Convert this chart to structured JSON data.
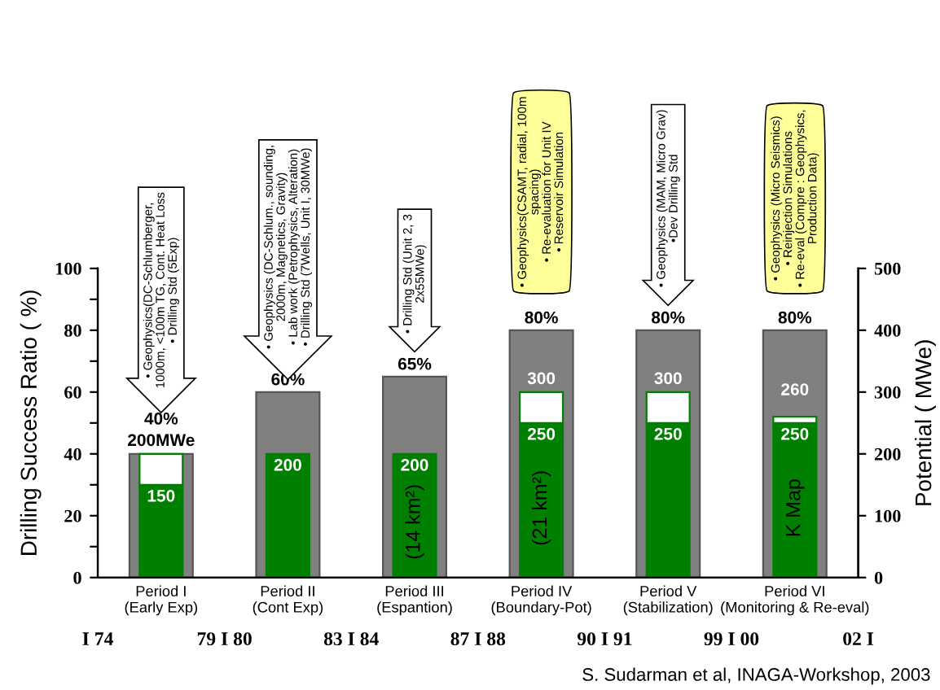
{
  "chart_data": {
    "type": "bar",
    "categories": [
      "Period I\n(Early Exp)",
      "Period II\n(Cont Exp)",
      "Period III\n(Espantion)",
      "Period IV\n(Boundary-Pot)",
      "Period V\n(Stabilization)",
      "Period VI\n(Monitoring & Re-eval)"
    ],
    "series": [
      {
        "color": "#808080",
        "values": [
          40,
          60,
          65,
          80,
          80,
          80
        ],
        "value_labels": [
          "40%",
          "60%",
          "65%",
          "80%",
          "80%",
          "80%"
        ]
      },
      {
        "color": "#008000",
        "axis": "y2",
        "values": [
          150,
          200,
          200,
          250,
          250,
          250
        ],
        "value_labels": [
          "150",
          "200",
          "200",
          "250",
          "250",
          "250"
        ]
      },
      {
        "color": "#ffffff",
        "axis": "y2",
        "values": [
          50,
          null,
          null,
          50,
          50,
          10
        ]
      }
    ],
    "stacked": true,
    "ylabel": "Drilling Success Ratio ( %)",
    "y2label": "Potential ( MWe)",
    "ylim": [
      0,
      100
    ],
    "yticks": [
      0,
      {
        "value": 10,
        "label": null
      },
      20,
      {
        "value": 30,
        "label": null
      },
      40,
      {
        "value": 50,
        "label": null
      },
      60,
      {
        "value": 70,
        "label": null
      },
      80,
      {
        "value": 90,
        "label": null
      },
      100
    ],
    "y2lim": [
      0,
      500
    ],
    "y2ticks": [
      0,
      100,
      200,
      300,
      400,
      500
    ],
    "legend": false,
    "annotations": [
      "• Geophysics(DC-Schlumberger,\n1000m, <100m TG, Cont. Heat Loss\n• Drilling Std (5Exp)",
      "• Geophysics (DC-Schlum., sounding,\n2000m, Magnetics, Gravity)\n• Lab work (Petrophysics, Alteration)\n• Drilling Std (7Wells, Unit I, 30MWe)",
      "• Drilling Std (Unit 2, 3\n2x55MWe)",
      "• Geophysics(CSAMT, radial, 100m\nspacing)\n• Re-evaluation for Unit IV\n• Reservoir Simulation",
      "• Geophysics (MAM, Micro Grav)\n•Dev Drilling Std",
      "• Geophysics (Micro Seismics)\n• Reinjection Simulations\n• Re-eval (Compre : Geophysics,\nProduction Data)",
      "(14 km²)",
      "(21 km²)",
      "K Map",
      "200MWe",
      "300",
      "300",
      "260",
      "I 74",
      "79 I 80",
      "83 I 84",
      "87 I 88",
      "90 I 91",
      "99 I 00",
      "02 I",
      "S. Sudarman et al, INAGA-Workshop, 2003"
    ]
  }
}
